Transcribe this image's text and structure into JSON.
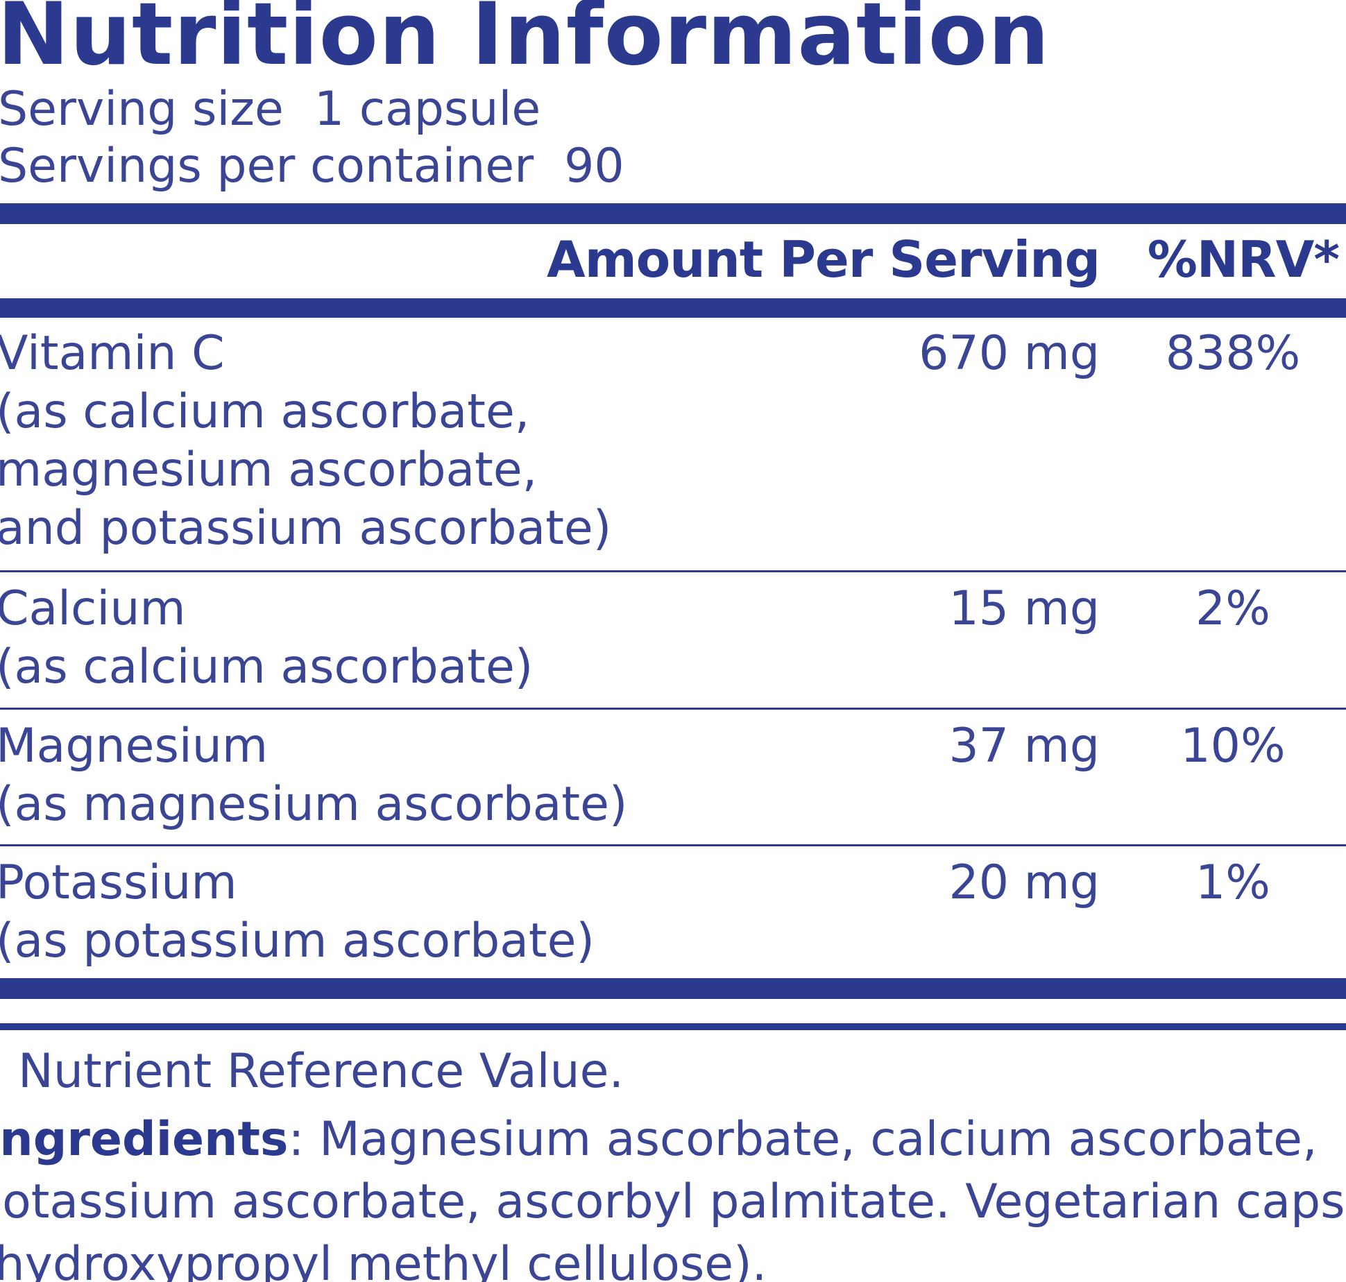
{
  "title": "Nutrition Information",
  "serving": {
    "size_label": "Serving size",
    "size_value": "1 capsule",
    "count_label": "Servings per container",
    "count_value": "90"
  },
  "table": {
    "headers": {
      "amount": "Amount Per Serving",
      "nrv": "%NRV*"
    },
    "rows": [
      {
        "name_lines": [
          "Vitamin C",
          "(as calcium ascorbate,",
          "magnesium ascorbate,",
          "and potassium ascorbate)"
        ],
        "amount": "670 mg",
        "nrv": "838%"
      },
      {
        "name_lines": [
          "Calcium",
          "(as calcium ascorbate)"
        ],
        "amount": "15 mg",
        "nrv": "2%"
      },
      {
        "name_lines": [
          "Magnesium",
          "(as magnesium ascorbate)"
        ],
        "amount": "37 mg",
        "nrv": "10%"
      },
      {
        "name_lines": [
          "Potassium",
          "(as potassium ascorbate)"
        ],
        "amount": "20 mg",
        "nrv": "1%"
      }
    ]
  },
  "footnote": "Nutrient Reference Value.",
  "ingredients": {
    "label": "Ingredients",
    "lines": [
      ": Magnesium ascorbate, calcium ascorbate,",
      "potassium ascorbate, ascorbyl palmitate. Vegetarian capsule",
      "(hydroxypropyl methyl cellulose)."
    ]
  },
  "colors": {
    "brand_blue": "#2b3a8f",
    "text_blue": "#3a4595"
  }
}
